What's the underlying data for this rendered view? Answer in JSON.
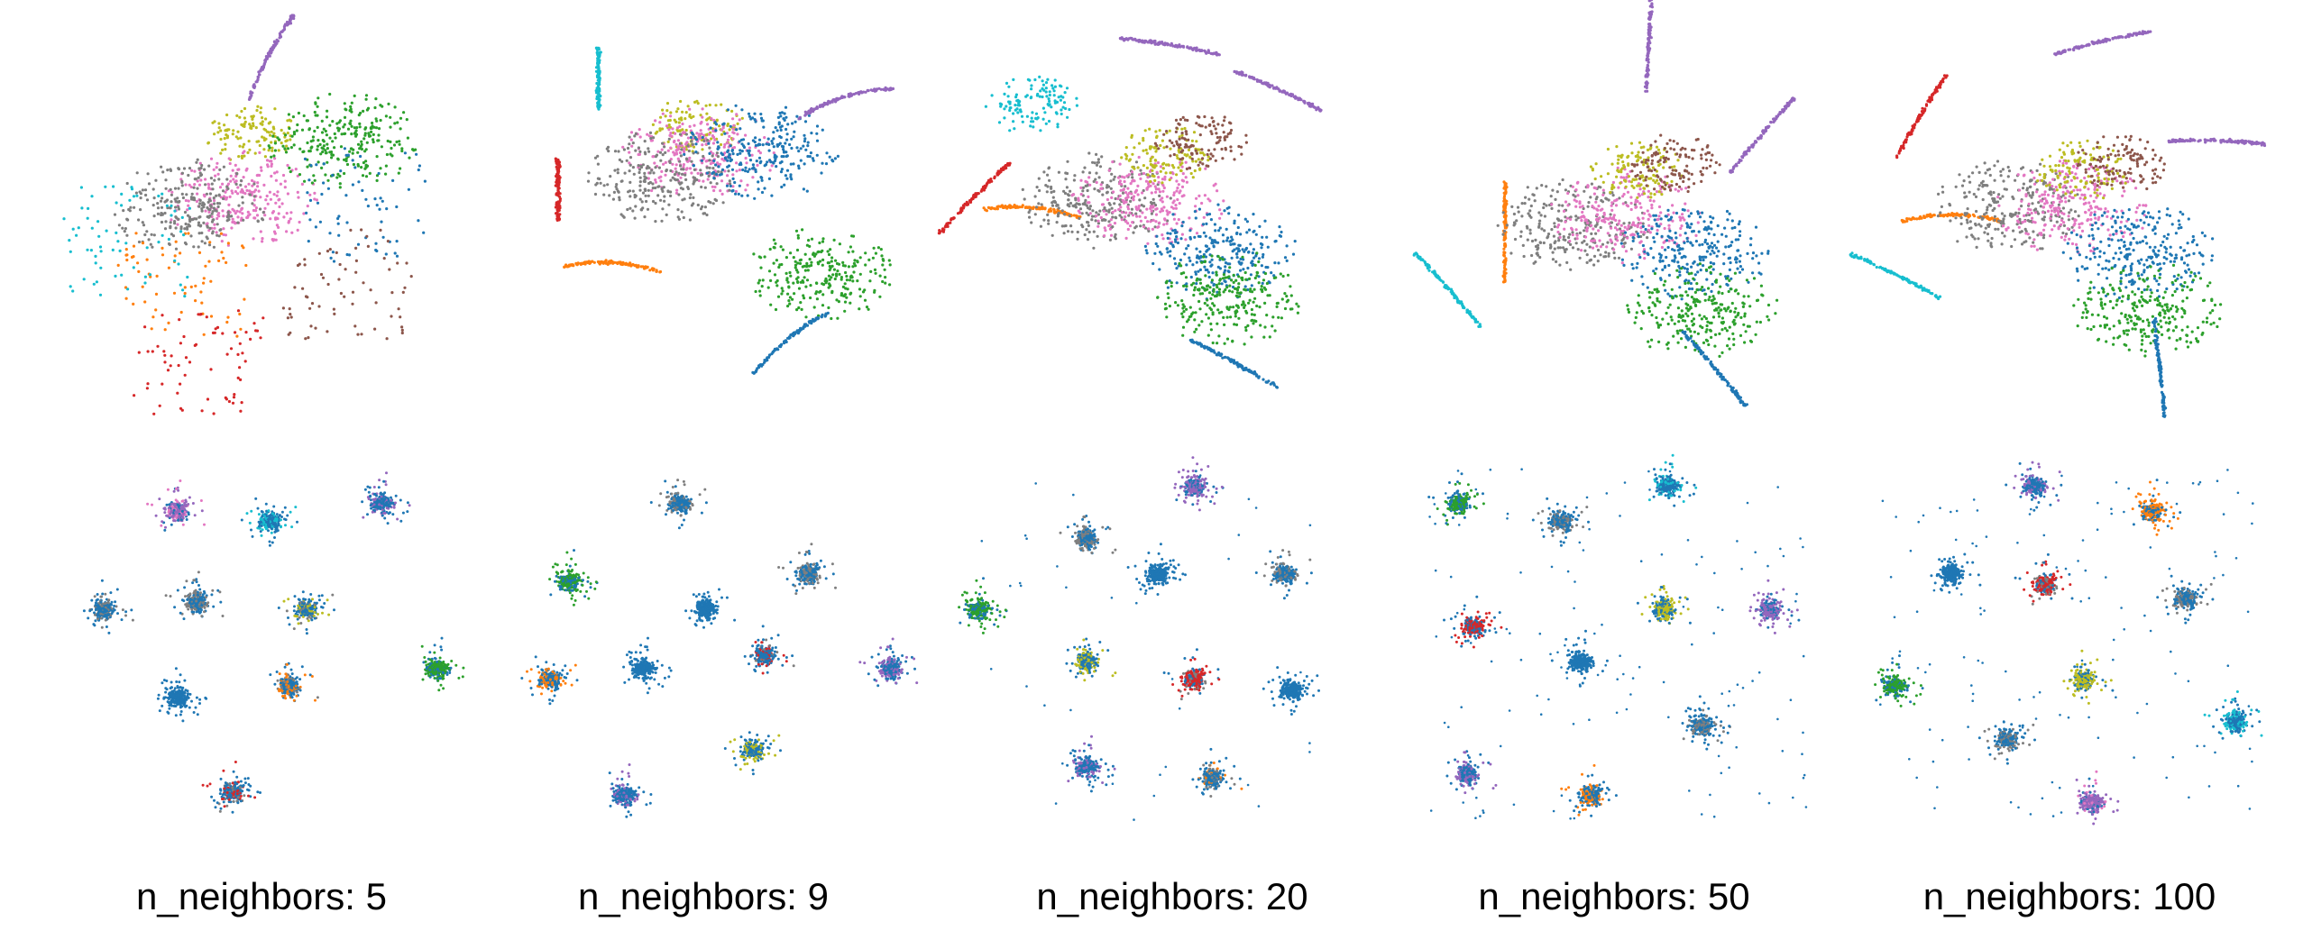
{
  "figure": {
    "captions": [
      "n_neighbors: 5",
      "n_neighbors: 9",
      "n_neighbors: 20",
      "n_neighbors: 50",
      "n_neighbors: 100"
    ]
  },
  "colors": {
    "blue": "#1f77b4",
    "orange": "#ff7f0e",
    "green": "#2ca02c",
    "red": "#d62728",
    "purple": "#9467bd",
    "brown": "#8c564b",
    "pink": "#e377c2",
    "gray": "#7f7f7f",
    "olive": "#bcbd22",
    "cyan": "#17becf"
  },
  "chart_data": {
    "type": "scatter",
    "layout": "2 rows x 5 columns of embedding scatter plots, no axes, no grid, no legend",
    "columns": [
      "n_neighbors: 5",
      "n_neighbors: 9",
      "n_neighbors: 20",
      "n_neighbors: 50",
      "n_neighbors: 100"
    ],
    "n_neighbors": [
      5,
      9,
      20,
      50,
      100
    ],
    "row_top": {
      "structure": "curved filaments",
      "clusters_per_panel": [
        [
          {
            "color": "purple",
            "x": 0.5,
            "y": 0.08,
            "kind": "arc"
          },
          {
            "color": "olive",
            "x": 0.45,
            "y": 0.3,
            "kind": "blob"
          },
          {
            "color": "pink",
            "x": 0.42,
            "y": 0.48,
            "kind": "web"
          },
          {
            "color": "gray",
            "x": 0.28,
            "y": 0.5,
            "kind": "web"
          },
          {
            "color": "green",
            "x": 0.7,
            "y": 0.32,
            "kind": "web"
          },
          {
            "color": "blue",
            "x": 0.75,
            "y": 0.48,
            "kind": "scatter"
          },
          {
            "color": "brown",
            "x": 0.72,
            "y": 0.7,
            "kind": "scatter"
          },
          {
            "color": "orange",
            "x": 0.25,
            "y": 0.7,
            "kind": "scatter"
          },
          {
            "color": "cyan",
            "x": 0.12,
            "y": 0.58,
            "kind": "scatter"
          },
          {
            "color": "red",
            "x": 0.3,
            "y": 0.92,
            "kind": "scatter"
          }
        ],
        [
          {
            "color": "cyan",
            "x": 0.18,
            "y": 0.15,
            "kind": "vertical"
          },
          {
            "color": "red",
            "x": 0.07,
            "y": 0.45,
            "kind": "vertical"
          },
          {
            "color": "orange",
            "x": 0.22,
            "y": 0.65,
            "kind": "arc"
          },
          {
            "color": "olive",
            "x": 0.45,
            "y": 0.28,
            "kind": "blob"
          },
          {
            "color": "pink",
            "x": 0.45,
            "y": 0.35,
            "kind": "web"
          },
          {
            "color": "gray",
            "x": 0.35,
            "y": 0.42,
            "kind": "web"
          },
          {
            "color": "blue",
            "x": 0.62,
            "y": 0.35,
            "kind": "web"
          },
          {
            "color": "purple",
            "x": 0.85,
            "y": 0.2,
            "kind": "arc"
          },
          {
            "color": "green",
            "x": 0.78,
            "y": 0.68,
            "kind": "web"
          },
          {
            "color": "blue",
            "x": 0.7,
            "y": 0.85,
            "kind": "arc"
          }
        ],
        [
          {
            "color": "purple",
            "x": 0.58,
            "y": 0.06,
            "kind": "tail"
          },
          {
            "color": "purple",
            "x": 0.88,
            "y": 0.18,
            "kind": "tail"
          },
          {
            "color": "cyan",
            "x": 0.2,
            "y": 0.22,
            "kind": "blob"
          },
          {
            "color": "red",
            "x": 0.04,
            "y": 0.47,
            "kind": "line"
          },
          {
            "color": "orange",
            "x": 0.2,
            "y": 0.5,
            "kind": "arc"
          },
          {
            "color": "gray",
            "x": 0.38,
            "y": 0.48,
            "kind": "web"
          },
          {
            "color": "pink",
            "x": 0.52,
            "y": 0.48,
            "kind": "web"
          },
          {
            "color": "olive",
            "x": 0.57,
            "y": 0.36,
            "kind": "blob"
          },
          {
            "color": "brown",
            "x": 0.67,
            "y": 0.32,
            "kind": "loop"
          },
          {
            "color": "blue",
            "x": 0.72,
            "y": 0.62,
            "kind": "web"
          },
          {
            "color": "green",
            "x": 0.74,
            "y": 0.75,
            "kind": "web"
          },
          {
            "color": "blue",
            "x": 0.76,
            "y": 0.92,
            "kind": "tail"
          }
        ],
        [
          {
            "color": "purple",
            "x": 0.58,
            "y": 0.05,
            "kind": "tail"
          },
          {
            "color": "purple",
            "x": 0.88,
            "y": 0.3,
            "kind": "tail"
          },
          {
            "color": "cyan",
            "x": 0.05,
            "y": 0.72,
            "kind": "line"
          },
          {
            "color": "orange",
            "x": 0.2,
            "y": 0.55,
            "kind": "arc"
          },
          {
            "color": "gray",
            "x": 0.38,
            "y": 0.55,
            "kind": "web"
          },
          {
            "color": "pink",
            "x": 0.52,
            "y": 0.52,
            "kind": "web"
          },
          {
            "color": "olive",
            "x": 0.55,
            "y": 0.4,
            "kind": "blob"
          },
          {
            "color": "brown",
            "x": 0.65,
            "y": 0.38,
            "kind": "loop"
          },
          {
            "color": "blue",
            "x": 0.7,
            "y": 0.62,
            "kind": "web"
          },
          {
            "color": "green",
            "x": 0.72,
            "y": 0.78,
            "kind": "web"
          },
          {
            "color": "blue",
            "x": 0.75,
            "y": 0.93,
            "kind": "tail"
          }
        ],
        [
          {
            "color": "purple",
            "x": 0.6,
            "y": 0.05,
            "kind": "tail"
          },
          {
            "color": "purple",
            "x": 0.9,
            "y": 0.32,
            "kind": "tail"
          },
          {
            "color": "red",
            "x": 0.12,
            "y": 0.25,
            "kind": "line"
          },
          {
            "color": "cyan",
            "x": 0.05,
            "y": 0.68,
            "kind": "line"
          },
          {
            "color": "orange",
            "x": 0.2,
            "y": 0.52,
            "kind": "arc"
          },
          {
            "color": "gray",
            "x": 0.35,
            "y": 0.5,
            "kind": "web"
          },
          {
            "color": "pink",
            "x": 0.52,
            "y": 0.5,
            "kind": "web"
          },
          {
            "color": "olive",
            "x": 0.55,
            "y": 0.4,
            "kind": "blob"
          },
          {
            "color": "brown",
            "x": 0.65,
            "y": 0.38,
            "kind": "loop"
          },
          {
            "color": "blue",
            "x": 0.7,
            "y": 0.62,
            "kind": "web"
          },
          {
            "color": "green",
            "x": 0.72,
            "y": 0.78,
            "kind": "web"
          },
          {
            "color": "blue",
            "x": 0.75,
            "y": 0.93,
            "kind": "tail"
          }
        ]
      ]
    },
    "row_bottom": {
      "structure": "discrete round blobs",
      "clusters_per_panel": [
        [
          {
            "x": 0.25,
            "y": 0.12,
            "colors": [
              "purple",
              "pink",
              "blue"
            ]
          },
          {
            "x": 0.5,
            "y": 0.15,
            "colors": [
              "blue",
              "cyan"
            ]
          },
          {
            "x": 0.8,
            "y": 0.1,
            "colors": [
              "blue",
              "purple"
            ]
          },
          {
            "x": 0.05,
            "y": 0.4,
            "colors": [
              "blue",
              "gray"
            ]
          },
          {
            "x": 0.3,
            "y": 0.38,
            "colors": [
              "blue",
              "gray"
            ]
          },
          {
            "x": 0.6,
            "y": 0.4,
            "colors": [
              "blue",
              "olive",
              "gray"
            ]
          },
          {
            "x": 0.95,
            "y": 0.57,
            "colors": [
              "green",
              "blue"
            ]
          },
          {
            "x": 0.25,
            "y": 0.65,
            "colors": [
              "blue"
            ]
          },
          {
            "x": 0.55,
            "y": 0.62,
            "colors": [
              "blue",
              "orange",
              "gray"
            ]
          },
          {
            "x": 0.4,
            "y": 0.92,
            "colors": [
              "blue",
              "red",
              "gray"
            ]
          }
        ],
        [
          {
            "x": 0.4,
            "y": 0.1,
            "colors": [
              "blue",
              "gray"
            ]
          },
          {
            "x": 0.1,
            "y": 0.32,
            "colors": [
              "green",
              "blue"
            ]
          },
          {
            "x": 0.47,
            "y": 0.4,
            "colors": [
              "blue"
            ]
          },
          {
            "x": 0.75,
            "y": 0.3,
            "colors": [
              "blue",
              "gray"
            ]
          },
          {
            "x": 0.05,
            "y": 0.6,
            "colors": [
              "blue",
              "orange"
            ]
          },
          {
            "x": 0.3,
            "y": 0.57,
            "colors": [
              "blue"
            ]
          },
          {
            "x": 0.63,
            "y": 0.53,
            "colors": [
              "blue",
              "red",
              "gray"
            ]
          },
          {
            "x": 0.97,
            "y": 0.57,
            "colors": [
              "blue",
              "purple"
            ]
          },
          {
            "x": 0.6,
            "y": 0.8,
            "colors": [
              "blue",
              "olive"
            ]
          },
          {
            "x": 0.25,
            "y": 0.93,
            "colors": [
              "blue",
              "purple"
            ]
          }
        ],
        [
          {
            "x": 0.65,
            "y": 0.05,
            "colors": [
              "purple",
              "blue"
            ]
          },
          {
            "x": 0.35,
            "y": 0.2,
            "colors": [
              "blue",
              "gray"
            ]
          },
          {
            "x": 0.55,
            "y": 0.3,
            "colors": [
              "blue"
            ]
          },
          {
            "x": 0.9,
            "y": 0.3,
            "colors": [
              "blue",
              "gray"
            ]
          },
          {
            "x": 0.05,
            "y": 0.4,
            "colors": [
              "green",
              "blue"
            ]
          },
          {
            "x": 0.35,
            "y": 0.55,
            "colors": [
              "blue",
              "olive"
            ]
          },
          {
            "x": 0.65,
            "y": 0.6,
            "colors": [
              "red",
              "blue",
              "gray"
            ]
          },
          {
            "x": 0.92,
            "y": 0.63,
            "colors": [
              "blue"
            ]
          },
          {
            "x": 0.35,
            "y": 0.85,
            "colors": [
              "blue",
              "purple"
            ]
          },
          {
            "x": 0.7,
            "y": 0.88,
            "colors": [
              "blue",
              "gray",
              "orange"
            ]
          }
        ],
        [
          {
            "x": 0.08,
            "y": 0.1,
            "colors": [
              "green",
              "blue"
            ]
          },
          {
            "x": 0.35,
            "y": 0.15,
            "colors": [
              "blue",
              "gray"
            ]
          },
          {
            "x": 0.63,
            "y": 0.05,
            "colors": [
              "blue",
              "cyan"
            ]
          },
          {
            "x": 0.9,
            "y": 0.4,
            "colors": [
              "purple",
              "blue"
            ]
          },
          {
            "x": 0.62,
            "y": 0.4,
            "colors": [
              "olive",
              "blue"
            ]
          },
          {
            "x": 0.12,
            "y": 0.45,
            "colors": [
              "red",
              "blue"
            ]
          },
          {
            "x": 0.4,
            "y": 0.55,
            "colors": [
              "blue"
            ]
          },
          {
            "x": 0.72,
            "y": 0.73,
            "colors": [
              "blue",
              "gray"
            ]
          },
          {
            "x": 0.1,
            "y": 0.87,
            "colors": [
              "blue",
              "purple"
            ]
          },
          {
            "x": 0.43,
            "y": 0.93,
            "colors": [
              "blue",
              "orange"
            ]
          }
        ],
        [
          {
            "x": 0.42,
            "y": 0.05,
            "colors": [
              "blue",
              "purple"
            ]
          },
          {
            "x": 0.73,
            "y": 0.12,
            "colors": [
              "orange",
              "blue"
            ]
          },
          {
            "x": 0.2,
            "y": 0.3,
            "colors": [
              "blue"
            ]
          },
          {
            "x": 0.45,
            "y": 0.33,
            "colors": [
              "red",
              "blue",
              "gray"
            ]
          },
          {
            "x": 0.82,
            "y": 0.37,
            "colors": [
              "blue",
              "gray"
            ]
          },
          {
            "x": 0.05,
            "y": 0.62,
            "colors": [
              "green",
              "blue"
            ]
          },
          {
            "x": 0.55,
            "y": 0.6,
            "colors": [
              "olive",
              "blue"
            ]
          },
          {
            "x": 0.95,
            "y": 0.72,
            "colors": [
              "blue",
              "cyan"
            ]
          },
          {
            "x": 0.35,
            "y": 0.77,
            "colors": [
              "blue",
              "gray"
            ]
          },
          {
            "x": 0.57,
            "y": 0.95,
            "colors": [
              "purple",
              "pink",
              "blue"
            ]
          }
        ]
      ]
    }
  }
}
